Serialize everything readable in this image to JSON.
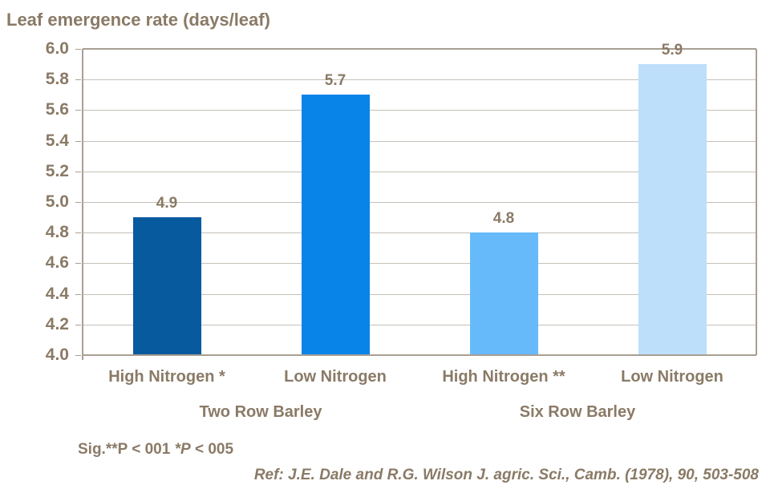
{
  "title": "Leaf emergence rate (days/leaf)",
  "colors": {
    "text": "#8A7A66",
    "gridline": "#C6C0B8",
    "axis": "#A89F93",
    "background": "#FFFFFF",
    "bar_colors": [
      "#075A9E",
      "#0884E8",
      "#66BAFA",
      "#BDDFFA"
    ]
  },
  "chart_data": {
    "type": "bar",
    "title": "Leaf emergence rate (days/leaf)",
    "categories": [
      "High Nitrogen *",
      "Low Nitrogen",
      "High Nitrogen **",
      "Low Nitrogen"
    ],
    "group_labels": [
      "Two Row Barley",
      "Six Row Barley"
    ],
    "values": [
      4.9,
      5.7,
      4.8,
      5.9
    ],
    "data_labels": [
      "4.9",
      "5.7",
      "4.8",
      "5.9"
    ],
    "bar_colors": [
      "#075A9E",
      "#0884E8",
      "#66BAFA",
      "#BDDFFA"
    ],
    "ylim": [
      4.0,
      6.0
    ],
    "ytick_step": 0.2,
    "ytick_labels": [
      "4.0",
      "4.2",
      "4.4",
      "4.6",
      "4.8",
      "5.0",
      "5.2",
      "5.4",
      "5.6",
      "5.8",
      "6.0"
    ],
    "xlabel": "",
    "ylabel": "Leaf emergence rate (days/leaf)",
    "grid": true,
    "legend": "none"
  },
  "footnotes": {
    "sig_prefix": "Sig.**P < 001 ",
    "sig_italic": "*P",
    "sig_suffix": " < 005",
    "reference": "Ref: J.E. Dale and R.G. Wilson J. agric. Sci., Camb. (1978), 90, 503-508"
  }
}
